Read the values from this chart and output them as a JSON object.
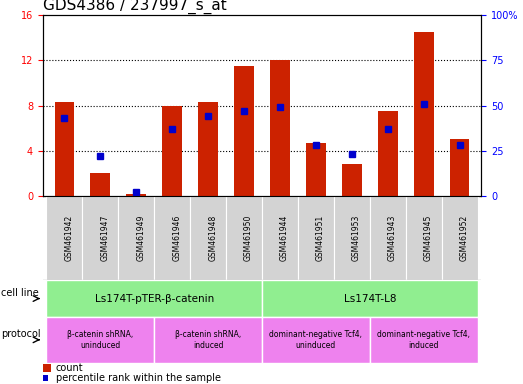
{
  "title": "GDS4386 / 237997_s_at",
  "samples": [
    "GSM461942",
    "GSM461947",
    "GSM461949",
    "GSM461946",
    "GSM461948",
    "GSM461950",
    "GSM461944",
    "GSM461951",
    "GSM461953",
    "GSM461943",
    "GSM461945",
    "GSM461952"
  ],
  "counts": [
    8.3,
    2.0,
    0.2,
    8.0,
    8.3,
    11.5,
    12.0,
    4.7,
    2.8,
    7.5,
    14.5,
    5.0
  ],
  "percentile_ranks": [
    43,
    22,
    2,
    37,
    44,
    47,
    49,
    28,
    23,
    37,
    51,
    28
  ],
  "ylim_left": [
    0,
    16
  ],
  "ylim_right": [
    0,
    100
  ],
  "yticks_left": [
    0,
    4,
    8,
    12,
    16
  ],
  "yticks_right": [
    0,
    25,
    50,
    75,
    100
  ],
  "bar_color": "#cc2200",
  "dot_color": "#0000cc",
  "cell_line_groups": [
    {
      "label": "Ls174T-pTER-β-catenin",
      "start": 0,
      "end": 5
    },
    {
      "label": "Ls174T-L8",
      "start": 6,
      "end": 11
    }
  ],
  "protocol_groups": [
    {
      "label": "β-catenin shRNA,\nuninduced",
      "start": 0,
      "end": 2
    },
    {
      "label": "β-catenin shRNA,\ninduced",
      "start": 3,
      "end": 5
    },
    {
      "label": "dominant-negative Tcf4,\nuninduced",
      "start": 6,
      "end": 8
    },
    {
      "label": "dominant-negative Tcf4,\ninduced",
      "start": 9,
      "end": 11
    }
  ],
  "cl_color": "#90ee90",
  "prot_color": "#ee82ee",
  "sample_bg_color": "#d3d3d3",
  "legend_count_label": "count",
  "legend_percentile_label": "percentile rank within the sample",
  "cell_line_label": "cell line",
  "protocol_label": "protocol",
  "title_fontsize": 11,
  "tick_fontsize": 7,
  "label_fontsize": 8,
  "bar_width": 0.55
}
